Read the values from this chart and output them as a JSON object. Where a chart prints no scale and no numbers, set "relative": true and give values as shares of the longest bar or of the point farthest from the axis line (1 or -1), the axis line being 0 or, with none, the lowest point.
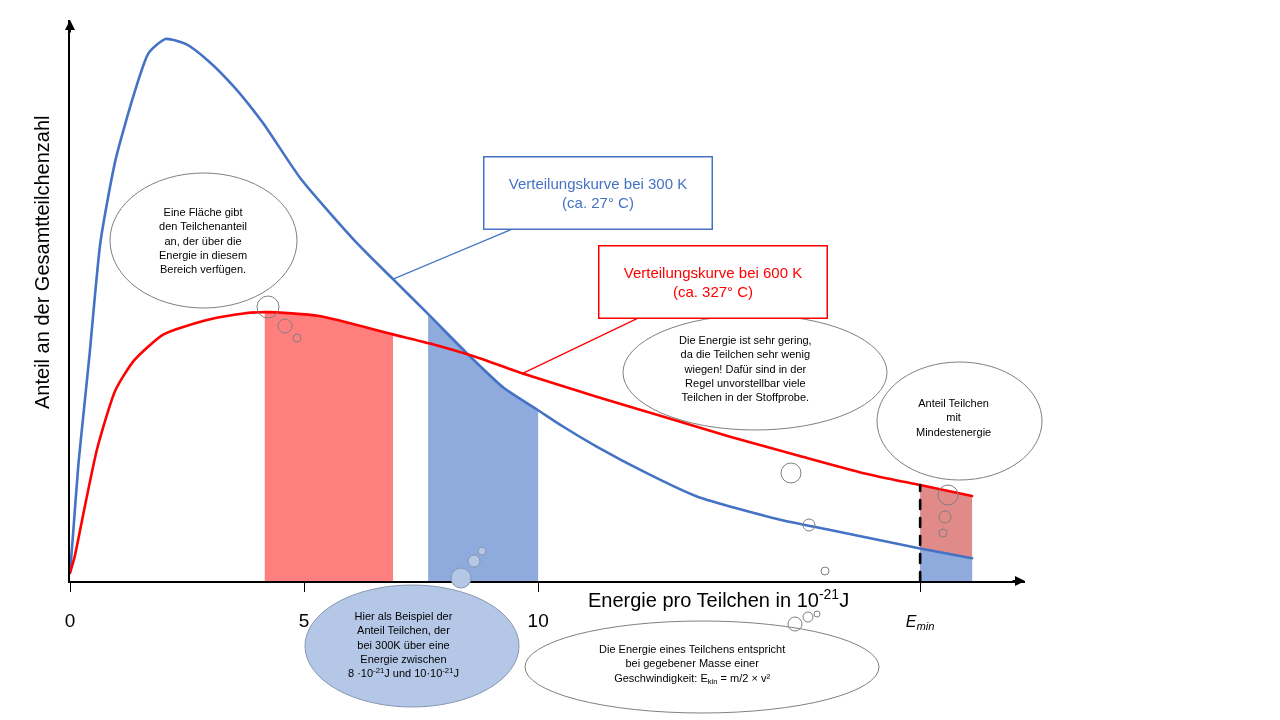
{
  "chart_data": {
    "type": "line",
    "relative": true,
    "tick_labels": "x",
    "xlabel": "Energie pro Teilchen in 10$^{-21}$J",
    "ylabel": "Anteil an der Gesamtteilchenzahl",
    "xlim": [
      0,
      20.4
    ],
    "xticks": [
      0,
      5,
      10,
      {
        "value": 18.16,
        "label": "E$_{min}$"
      }
    ],
    "annotations": [
      "Eine Fläche gibt\nden Teilchenanteil\nan, der über die\nEnergie in diesem\nBereich verfügen.",
      "Die Energie ist sehr gering,\nda die Teilchen sehr wenig\nwiegen! Dafür sind in der\nRegel unvorstellbar viele\nTeilchen in der Stoffprobe.",
      "Anteil Teilchen\nmit\nMindestenergie",
      "Hier als Beispiel der\nAnteil Teilchen, der\nbei 300K über eine\nEnergie zwischen\n8 ·10$^{-21}$J und 10·10$^{-21}$J",
      "Die Energie eines Teilchens entspricht\nbei gegebener Masse einer\nGeschwindigkeit: E$_{kin}$ = m/2 × v²"
    ],
    "series": [
      {
        "type": "area",
        "color": "#ff7f7f",
        "x": [
          4.16,
          5.32,
          6.9
        ],
        "values": [
          0.496,
          0.489,
          0.455
        ]
      },
      {
        "type": "area",
        "color": "#8faadc",
        "x": [
          7.65,
          8.48,
          9.27,
          10.0
        ],
        "values": [
          0.49,
          0.42,
          0.356,
          0.315
        ]
      },
      {
        "type": "area",
        "color": "#e08a8a",
        "x": [
          18.16,
          19.27
        ],
        "values": [
          0.177,
          0.157
        ]
      },
      {
        "type": "area",
        "color": "#8faadc",
        "x": [
          18.16,
          19.27
        ],
        "values": [
          0.06,
          0.042
        ]
      },
      {
        "name": "Verteilungskurve bei 300 K\n(ca. 27° C)",
        "color": "#4472c4",
        "x": [
          0,
          0.06,
          0.18,
          0.3,
          0.42,
          0.65,
          0.97,
          1.37,
          1.68,
          2.04,
          2.47,
          2.95,
          3.5,
          4.13,
          4.93,
          6.11,
          6.9,
          7.69,
          8.48,
          9.27,
          10.0,
          10.53,
          11.25,
          12.32,
          13.39,
          15.17,
          16.24,
          18.16,
          19.27
        ],
        "values": [
          0.015,
          0.08,
          0.216,
          0.318,
          0.42,
          0.625,
          0.776,
          0.899,
          0.974,
          1.0,
          0.991,
          0.96,
          0.912,
          0.844,
          0.742,
          0.625,
          0.557,
          0.489,
          0.42,
          0.356,
          0.315,
          0.285,
          0.248,
          0.199,
          0.156,
          0.113,
          0.094,
          0.06,
          0.042
        ]
      },
      {
        "name": "Verteilungskurve bei 600 K\n(ca. 327° C)",
        "color": "#ff0000",
        "x": [
          0,
          0.1,
          0.26,
          0.58,
          0.97,
          1.37,
          2.0,
          2.95,
          3.74,
          4.21,
          5.32,
          6.9,
          7.69,
          8.64,
          9.67,
          11.25,
          12.68,
          14.1,
          15.53,
          16.95,
          18.16,
          19.27
        ],
        "values": [
          0.015,
          0.045,
          0.113,
          0.244,
          0.352,
          0.407,
          0.455,
          0.482,
          0.494,
          0.496,
          0.489,
          0.455,
          0.438,
          0.414,
          0.383,
          0.34,
          0.303,
          0.266,
          0.232,
          0.199,
          0.177,
          0.157
        ]
      },
      {
        "type": "line",
        "color": "#000000",
        "line_style": "dashed",
        "x": [
          18.16,
          18.16
        ],
        "values": [
          0,
          0.177
        ]
      }
    ]
  }
}
